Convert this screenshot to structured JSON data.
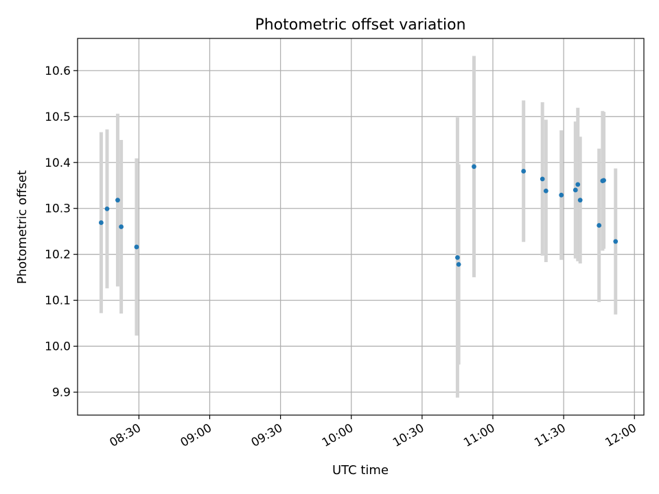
{
  "chart_data": {
    "type": "scatter",
    "title": "Photometric offset variation",
    "xlabel": "UTC time",
    "ylabel": "Photometric offset",
    "x_unit": "time of day",
    "xlim": [
      "08:04",
      "12:04"
    ],
    "ylim": [
      9.85,
      10.67
    ],
    "x_ticks": [
      "08:30",
      "09:00",
      "09:30",
      "10:00",
      "10:30",
      "11:00",
      "11:30",
      "12:00"
    ],
    "y_ticks": [
      "9.9",
      "10.0",
      "10.1",
      "10.2",
      "10.3",
      "10.4",
      "10.5",
      "10.6"
    ],
    "grid": true,
    "colors": {
      "marker": "#1f77b4",
      "errorbar": "#d3d3d3"
    },
    "points": [
      {
        "time": "08:14:00",
        "y": 10.269,
        "err": 0.197
      },
      {
        "time": "08:16:30",
        "y": 10.299,
        "err": 0.173
      },
      {
        "time": "08:21:00",
        "y": 10.318,
        "err": 0.188
      },
      {
        "time": "08:22:30",
        "y": 10.26,
        "err": 0.189
      },
      {
        "time": "08:29:00",
        "y": 10.216,
        "err": 0.193
      },
      {
        "time": "10:45:00",
        "y": 10.193,
        "err": 0.305
      },
      {
        "time": "10:45:30",
        "y": 10.178,
        "err": 0.218
      },
      {
        "time": "10:52:00",
        "y": 10.391,
        "err": 0.241
      },
      {
        "time": "11:13:00",
        "y": 10.381,
        "err": 0.154
      },
      {
        "time": "11:21:00",
        "y": 10.364,
        "err": 0.167
      },
      {
        "time": "11:22:30",
        "y": 10.338,
        "err": 0.155
      },
      {
        "time": "11:29:00",
        "y": 10.329,
        "err": 0.141
      },
      {
        "time": "11:35:00",
        "y": 10.34,
        "err": 0.149
      },
      {
        "time": "11:36:00",
        "y": 10.352,
        "err": 0.167
      },
      {
        "time": "11:37:00",
        "y": 10.318,
        "err": 0.138
      },
      {
        "time": "11:45:00",
        "y": 10.263,
        "err": 0.167
      },
      {
        "time": "11:46:30",
        "y": 10.36,
        "err": 0.152
      },
      {
        "time": "11:47:00",
        "y": 10.361,
        "err": 0.149
      },
      {
        "time": "11:52:00",
        "y": 10.228,
        "err": 0.159
      }
    ]
  }
}
